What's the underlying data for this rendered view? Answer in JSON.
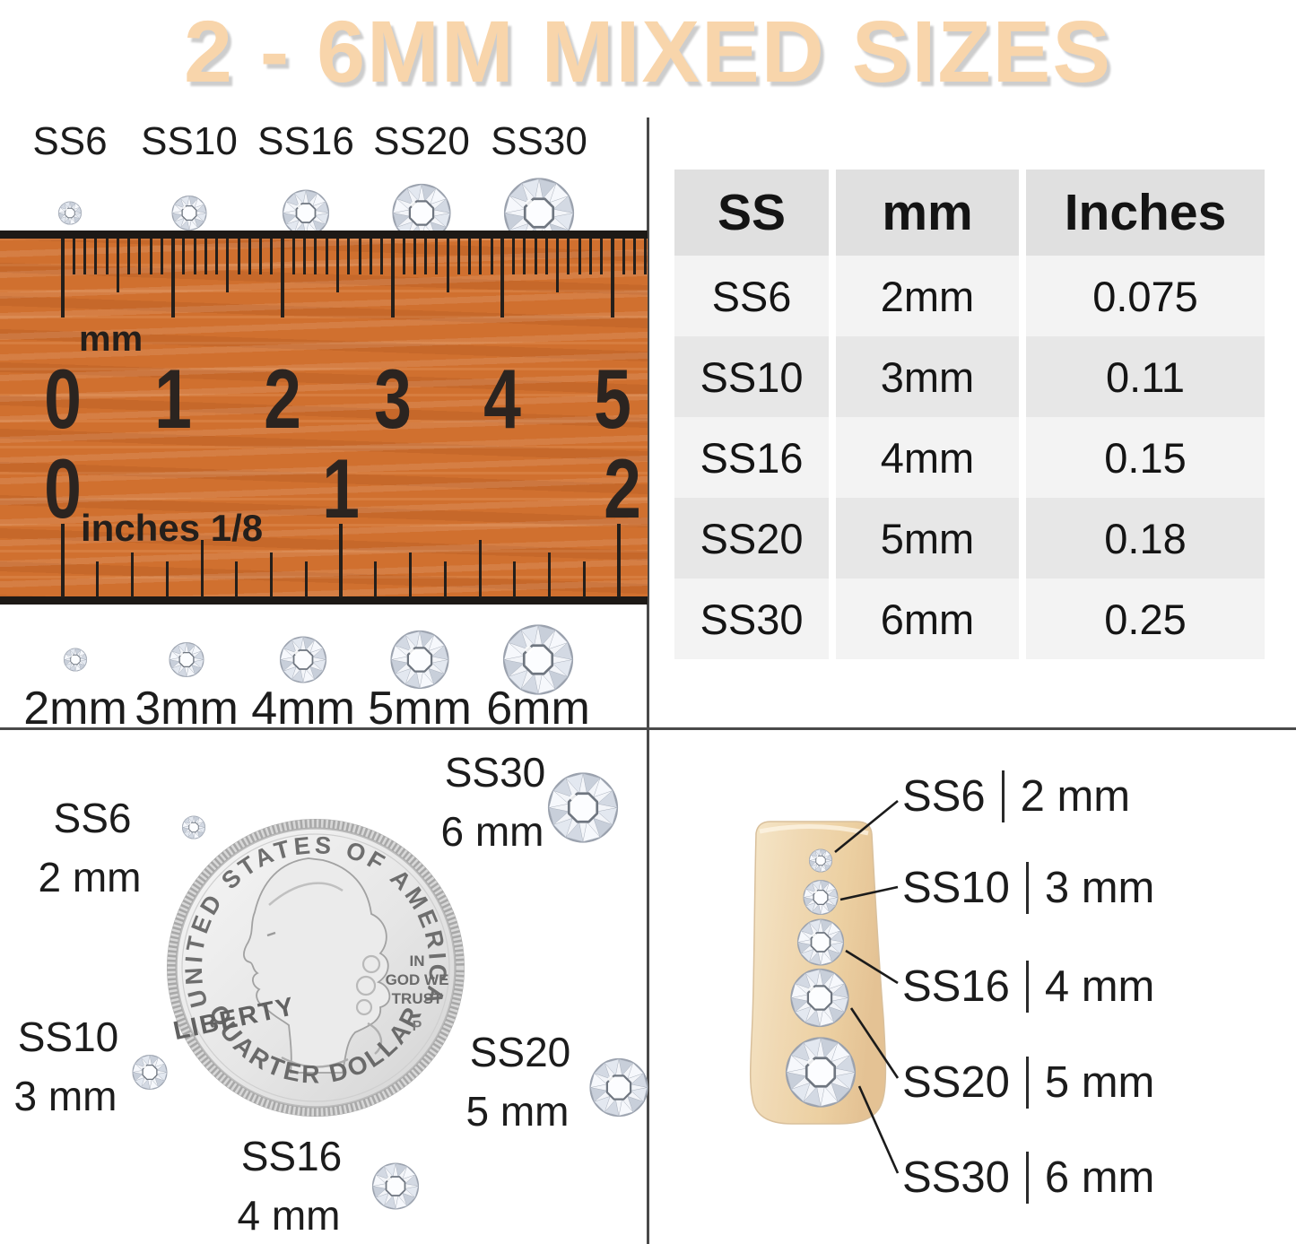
{
  "title": "2 - 6MM MIXED SIZES",
  "colors": {
    "title_peach": "#f8d5ab",
    "title_shadow": "#cdcdcd",
    "ruler_orange": "#d0702f",
    "tick_black": "#241f1b",
    "divider_gray": "#4a4a4a",
    "table_header_bg": "#e0e0e0",
    "table_row_light": "#f3f3f3",
    "table_row_dark": "#e7e7e7",
    "text_dark": "#1c1c1c",
    "nail_beige": "#eed3a6",
    "coin_silver": "#dcdcdc",
    "callout_line": "#1b1b1b"
  },
  "sizes": [
    {
      "ss": "SS6",
      "mm": "2mm",
      "mm_spaced": "2 mm",
      "inches": "0.075"
    },
    {
      "ss": "SS10",
      "mm": "3mm",
      "mm_spaced": "3 mm",
      "inches": "0.11"
    },
    {
      "ss": "SS16",
      "mm": "4mm",
      "mm_spaced": "4 mm",
      "inches": "0.15"
    },
    {
      "ss": "SS20",
      "mm": "5mm",
      "mm_spaced": "5 mm",
      "inches": "0.18"
    },
    {
      "ss": "SS30",
      "mm": "6mm",
      "mm_spaced": "6 mm",
      "inches": "0.25"
    }
  ],
  "table": {
    "headers": [
      "SS",
      "mm",
      "Inches"
    ],
    "rows": [
      [
        "SS6",
        "2mm",
        "0.075"
      ],
      [
        "SS10",
        "3mm",
        "0.11"
      ],
      [
        "SS16",
        "4mm",
        "0.15"
      ],
      [
        "SS20",
        "5mm",
        "0.18"
      ],
      [
        "SS30",
        "6mm",
        "0.25"
      ]
    ]
  },
  "ruler": {
    "unit_top": "mm",
    "cm_numbers": [
      "0",
      "1",
      "2",
      "3",
      "4",
      "5"
    ],
    "unit_bottom": "inches 1/8",
    "inch_numbers": [
      "0",
      "1",
      "2"
    ]
  },
  "coin": {
    "top_text": "UNITED STATES OF AMERICA",
    "liberty": "LIBERTY",
    "motto_line1": "IN",
    "motto_line2": "GOD WE",
    "motto_line3": "TRUST",
    "mint_mark": "P",
    "bottom_text": "QUARTER DOLLAR"
  }
}
